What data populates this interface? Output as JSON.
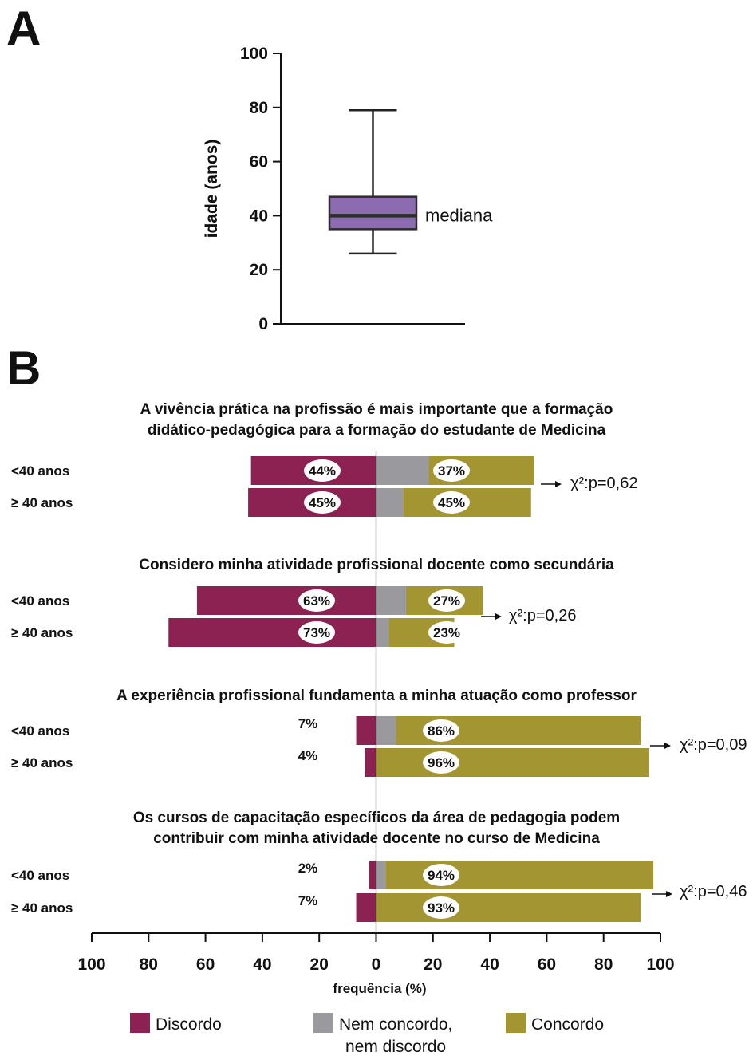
{
  "colors": {
    "box_fill": "#8c6bb1",
    "box_stroke": "#2d2d2d",
    "discordo": "#8b2252",
    "neutral": "#9a9a9e",
    "concordo": "#a39532",
    "ink": "#111111"
  },
  "panel_a": {
    "letter": "A",
    "median_label": "mediana"
  },
  "panel_b": {
    "letter": "B",
    "chi_prefix": "χ²:p="
  },
  "chart_data": [
    {
      "type": "boxplot",
      "panel": "A",
      "ylabel": "idade (anos)",
      "ylim": [
        0,
        100
      ],
      "yticks": [
        0,
        20,
        40,
        60,
        80,
        100
      ],
      "box": {
        "min": 26,
        "q1": 35,
        "median": 40,
        "q3": 47,
        "max": 79
      },
      "annotation": "mediana"
    },
    {
      "type": "bar",
      "orientation": "horizontal",
      "stacked": "diverging",
      "panel": "B",
      "xlabel": "frequência (%)",
      "xlim": [
        -100,
        100
      ],
      "xticks": [
        -100,
        -80,
        -60,
        -40,
        -20,
        0,
        20,
        40,
        60,
        80,
        100
      ],
      "xtick_labels": [
        "100",
        "80",
        "60",
        "40",
        "20",
        "0",
        "20",
        "40",
        "60",
        "80",
        "100"
      ],
      "legend": [
        {
          "key": "discordo",
          "label": "Discordo"
        },
        {
          "key": "neutral",
          "label_line1": "Nem concordo,",
          "label_line2": "nem discordo"
        },
        {
          "key": "concordo",
          "label": "Concordo"
        }
      ],
      "groups": [
        {
          "title_lines": [
            "A vivência prática na profissão é mais importante que a formação",
            "didático-pedagógica para a formação do estudante de Medicina"
          ],
          "pvalue": "0,62",
          "rows": [
            {
              "label": "<40 anos",
              "discordo": 44,
              "neutral": 18.5,
              "concordo": 37,
              "discordo_label": "44%",
              "concordo_label": "37%"
            },
            {
              "label": "≥ 40 anos",
              "discordo": 45,
              "neutral": 9.5,
              "concordo": 45,
              "discordo_label": "45%",
              "concordo_label": "45%"
            }
          ]
        },
        {
          "title_lines": [
            "Considero minha atividade profissional docente como secundária"
          ],
          "pvalue": "0,26",
          "rows": [
            {
              "label": "<40 anos",
              "discordo": 63,
              "neutral": 10.5,
              "concordo": 27,
              "discordo_label": "63%",
              "concordo_label": "27%"
            },
            {
              "label": "≥ 40 anos",
              "discordo": 73,
              "neutral": 4.5,
              "concordo": 23,
              "discordo_label": "73%",
              "concordo_label": "23%"
            }
          ]
        },
        {
          "title_lines": [
            "A experiência profissional fundamenta a minha atuação como professor"
          ],
          "pvalue": "0,09",
          "rows": [
            {
              "label": "<40 anos",
              "discordo": 7,
              "neutral": 7,
              "concordo": 86,
              "discordo_label": "7%",
              "concordo_label": "86%"
            },
            {
              "label": "≥ 40 anos",
              "discordo": 4,
              "neutral": 0,
              "concordo": 96,
              "discordo_label": "4%",
              "concordo_label": "96%"
            }
          ]
        },
        {
          "title_lines": [
            "Os cursos de capacitação específicos da área de pedagogia podem",
            "contribuir com minha atividade docente no curso de Medicina"
          ],
          "pvalue": "0,46",
          "rows": [
            {
              "label": "<40 anos",
              "discordo": 2.5,
              "neutral": 3.5,
              "concordo": 94,
              "discordo_label": "2%",
              "concordo_label": "94%"
            },
            {
              "label": "≥ 40 anos",
              "discordo": 7,
              "neutral": 0,
              "concordo": 93,
              "discordo_label": "7%",
              "concordo_label": "93%"
            }
          ]
        }
      ]
    }
  ]
}
